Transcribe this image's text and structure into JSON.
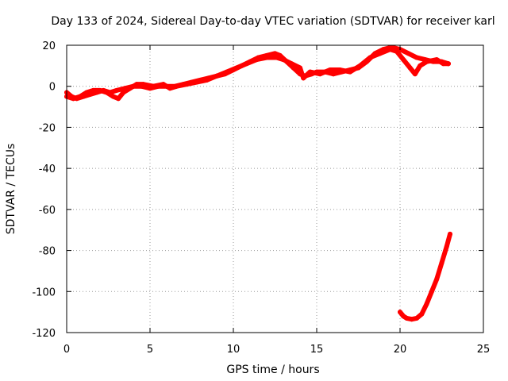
{
  "chart_data": {
    "type": "scatter",
    "title": "Day 133 of 2024, Sidereal Day-to-day VTEC variation (SDTVAR) for receiver karl",
    "xlabel": "GPS time / hours",
    "ylabel": "SDTVAR / TECUs",
    "xlim": [
      0,
      25
    ],
    "ylim": [
      -120,
      20
    ],
    "xticks": [
      0,
      5,
      10,
      15,
      20,
      25
    ],
    "yticks": [
      20,
      0,
      -20,
      -40,
      -60,
      -80,
      -100,
      -120
    ],
    "xtick_labels": [
      "0",
      "5",
      "10",
      "15",
      "20",
      "25"
    ],
    "ytick_labels": [
      "20",
      "0",
      "-20",
      "-40",
      "-60",
      "-80",
      "-100",
      "-120"
    ],
    "grid": true,
    "legend": "none",
    "series_color": "#ff0000",
    "series": [
      {
        "points": [
          [
            0.0,
            -3
          ],
          [
            0.3,
            -5
          ],
          [
            0.6,
            -6
          ],
          [
            1.0,
            -5
          ],
          [
            1.4,
            -4
          ],
          [
            1.8,
            -3
          ],
          [
            2.2,
            -2
          ],
          [
            2.6,
            -3
          ],
          [
            3.0,
            -2
          ],
          [
            3.5,
            -1
          ],
          [
            4.0,
            0
          ],
          [
            4.5,
            0
          ],
          [
            5.0,
            -1
          ],
          [
            5.5,
            0
          ],
          [
            6.0,
            0
          ],
          [
            6.5,
            0
          ],
          [
            7.0,
            1
          ],
          [
            7.5,
            2
          ],
          [
            8.0,
            3
          ],
          [
            8.5,
            4
          ],
          [
            9.0,
            5
          ],
          [
            9.5,
            6
          ],
          [
            10.0,
            8
          ],
          [
            10.5,
            10
          ],
          [
            11.0,
            12
          ],
          [
            11.5,
            14
          ],
          [
            12.0,
            15
          ],
          [
            12.5,
            16
          ],
          [
            12.8,
            15
          ],
          [
            13.2,
            12
          ],
          [
            13.6,
            9
          ],
          [
            14.0,
            6
          ],
          [
            14.3,
            5
          ],
          [
            14.7,
            6
          ],
          [
            15.0,
            7
          ],
          [
            15.5,
            7
          ],
          [
            16.0,
            6
          ],
          [
            16.5,
            7
          ],
          [
            17.0,
            8
          ],
          [
            17.5,
            9
          ],
          [
            18.0,
            12
          ],
          [
            18.5,
            16
          ],
          [
            19.0,
            18
          ],
          [
            19.5,
            19
          ],
          [
            20.0,
            18
          ],
          [
            20.5,
            16
          ],
          [
            21.0,
            14
          ],
          [
            21.5,
            13
          ],
          [
            22.0,
            12
          ],
          [
            22.5,
            12
          ],
          [
            22.9,
            11
          ]
        ]
      },
      {
        "points": [
          [
            0.0,
            -5
          ],
          [
            0.4,
            -6
          ],
          [
            0.8,
            -5
          ],
          [
            1.2,
            -3
          ],
          [
            1.6,
            -2
          ],
          [
            2.0,
            -2
          ],
          [
            2.4,
            -3
          ],
          [
            2.8,
            -5
          ],
          [
            3.1,
            -6
          ],
          [
            3.4,
            -3
          ],
          [
            3.8,
            -1
          ],
          [
            4.2,
            1
          ],
          [
            4.6,
            1
          ],
          [
            5.2,
            0
          ],
          [
            5.8,
            1
          ],
          [
            6.2,
            -1
          ],
          [
            6.6,
            0
          ],
          [
            7.2,
            1
          ],
          [
            7.8,
            2
          ],
          [
            8.4,
            3
          ],
          [
            9.0,
            5
          ],
          [
            9.6,
            7
          ],
          [
            10.2,
            9
          ],
          [
            10.8,
            11
          ],
          [
            11.4,
            13
          ],
          [
            12.0,
            14
          ],
          [
            12.6,
            14
          ],
          [
            13.0,
            13
          ],
          [
            13.5,
            11
          ],
          [
            14.0,
            9
          ],
          [
            14.2,
            4
          ],
          [
            14.6,
            7
          ],
          [
            15.2,
            6
          ],
          [
            15.8,
            8
          ],
          [
            16.4,
            8
          ],
          [
            17.0,
            7
          ],
          [
            17.6,
            10
          ],
          [
            18.2,
            14
          ],
          [
            18.8,
            16
          ],
          [
            19.4,
            18
          ],
          [
            19.8,
            17
          ],
          [
            20.2,
            13
          ],
          [
            20.6,
            9
          ],
          [
            20.9,
            6
          ],
          [
            21.2,
            10
          ],
          [
            21.6,
            12
          ],
          [
            22.2,
            13
          ],
          [
            22.6,
            11
          ],
          [
            22.9,
            11
          ]
        ]
      },
      {
        "points": [
          [
            20.0,
            -110
          ],
          [
            20.2,
            -112
          ],
          [
            20.4,
            -113
          ],
          [
            20.7,
            -113.5
          ],
          [
            21.0,
            -113
          ],
          [
            21.3,
            -111
          ],
          [
            21.6,
            -106
          ],
          [
            21.9,
            -100
          ],
          [
            22.2,
            -94
          ],
          [
            22.5,
            -86
          ],
          [
            22.8,
            -78
          ],
          [
            23.0,
            -72
          ]
        ]
      }
    ]
  }
}
